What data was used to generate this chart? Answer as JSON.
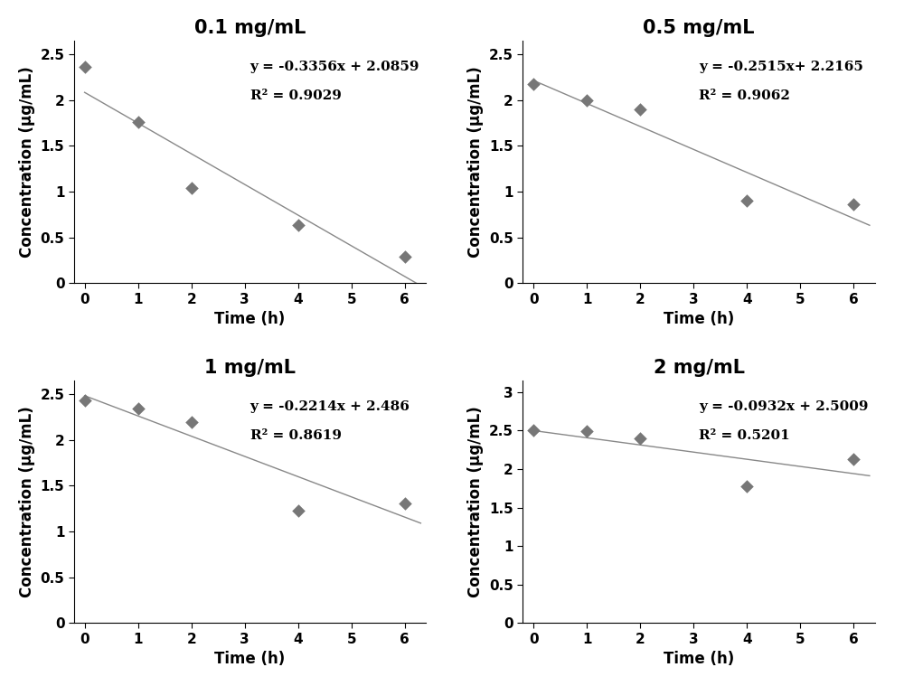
{
  "panels": [
    {
      "title": "0.1 mg/mL",
      "x_data": [
        0,
        1,
        2,
        4,
        6
      ],
      "y_data": [
        2.36,
        1.76,
        1.04,
        0.63,
        0.29
      ],
      "slope": -0.3356,
      "intercept": 2.0859,
      "eq_text": "y = -0.3356x + 2.0859",
      "r2_text": "R² = 0.9029",
      "ylim": [
        0,
        2.65
      ],
      "yticks": [
        0,
        0.5,
        1.0,
        1.5,
        2.0,
        2.5
      ],
      "ytick_labels": [
        "0",
        "0.5",
        "1",
        "1.5",
        "2",
        "2.5"
      ]
    },
    {
      "title": "0.5 mg/mL",
      "x_data": [
        0,
        1,
        2,
        4,
        6
      ],
      "y_data": [
        2.18,
        2.0,
        1.9,
        0.9,
        0.86
      ],
      "slope": -0.2515,
      "intercept": 2.2165,
      "eq_text": "y = -0.2515x+ 2.2165",
      "r2_text": "R² = 0.9062",
      "ylim": [
        0,
        2.65
      ],
      "yticks": [
        0,
        0.5,
        1.0,
        1.5,
        2.0,
        2.5
      ],
      "ytick_labels": [
        "0",
        "0.5",
        "1",
        "1.5",
        "2",
        "2.5"
      ]
    },
    {
      "title": "1 mg/mL",
      "x_data": [
        0,
        1,
        2,
        4,
        6
      ],
      "y_data": [
        2.43,
        2.35,
        2.2,
        1.23,
        1.31
      ],
      "slope": -0.2214,
      "intercept": 2.486,
      "eq_text": "y = -0.2214x + 2.486",
      "r2_text": "R² = 0.8619",
      "ylim": [
        0,
        2.65
      ],
      "yticks": [
        0,
        0.5,
        1.0,
        1.5,
        2.0,
        2.5
      ],
      "ytick_labels": [
        "0",
        "0.5",
        "1",
        "1.5",
        "2",
        "2.5"
      ]
    },
    {
      "title": "2 mg/mL",
      "x_data": [
        0,
        1,
        2,
        4,
        6
      ],
      "y_data": [
        2.51,
        2.49,
        2.4,
        1.78,
        2.13
      ],
      "slope": -0.0932,
      "intercept": 2.5009,
      "eq_text": "y = -0.0932x + 2.5009",
      "r2_text": "R² = 0.5201",
      "ylim": [
        0,
        3.15
      ],
      "yticks": [
        0,
        0.5,
        1.0,
        1.5,
        2.0,
        2.5,
        3.0
      ],
      "ytick_labels": [
        "0",
        "0.5",
        "1",
        "1.5",
        "2",
        "2.5",
        "3"
      ]
    }
  ],
  "xlabel": "Time (h)",
  "ylabel": "Concentration (μg/mL)",
  "xticks": [
    0,
    1,
    2,
    3,
    4,
    5,
    6
  ],
  "xtick_labels": [
    "0",
    "1",
    "2",
    "3",
    "4",
    "5",
    "6"
  ],
  "xlim": [
    -0.2,
    6.4
  ],
  "marker_color": "#777777",
  "line_color": "#888888",
  "title_fontsize": 15,
  "label_fontsize": 12,
  "tick_fontsize": 11,
  "eq_fontsize": 11,
  "background_color": "#ffffff"
}
